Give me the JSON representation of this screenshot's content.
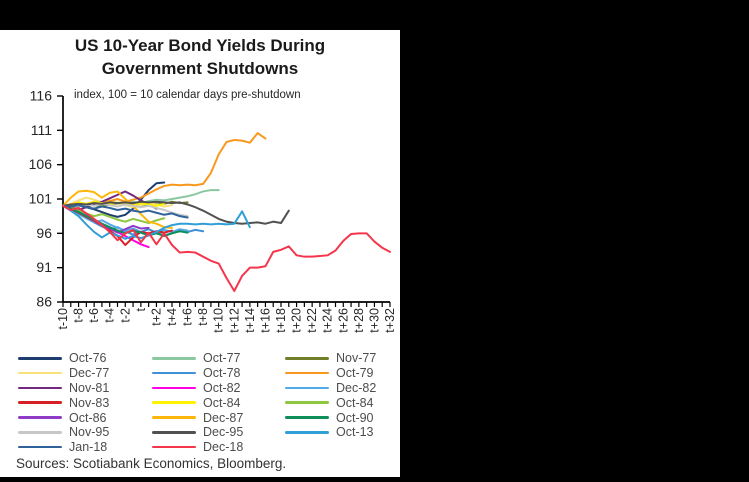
{
  "page": {
    "background_color": "#000000",
    "panel_color": "#ffffff",
    "axis_color": "#000000",
    "axis_text_color": "#262626",
    "legend_text_color": "#4d4d4d"
  },
  "chart_data": {
    "type": "line",
    "title": "US 10-Year Bond Yields During Government Shutdowns",
    "subtitle": "index, 100 = 10 calendar days pre-shutdown",
    "source_note": "Sources: Scotiabank Economics, Bloomberg.",
    "ylim": [
      86,
      116
    ],
    "yticks": [
      116,
      111,
      106,
      101,
      96,
      91,
      86
    ],
    "x_start": -10,
    "x_end": 32,
    "xtick_label_step": 2,
    "xtick_labels": [
      "t-10",
      "t-8",
      "t-6",
      "t-4",
      "t-2",
      "t",
      "t+2",
      "t+4",
      "t+6",
      "t+8",
      "t+10",
      "t+12",
      "t+14",
      "t+16",
      "t+18",
      "t+20",
      "t+22",
      "t+24",
      "t+26",
      "t+28",
      "t+30",
      "t+32"
    ],
    "grid": false,
    "legend_position": "bottom",
    "legend_columns": 3,
    "series": [
      {
        "name": "Oct-76",
        "color": "#1d3d6e",
        "values": [
          100,
          99.9,
          100.1,
          99.8,
          99.5,
          99.1,
          98.7,
          98.4,
          98.7,
          99.6,
          100.9,
          102.3,
          103.3,
          103.4
        ]
      },
      {
        "name": "Oct-77",
        "color": "#8bc8a2",
        "values": [
          100,
          100.1,
          99.9,
          100.2,
          100.3,
          100.1,
          100.4,
          100.3,
          100.4,
          100.6,
          100.4,
          100.7,
          100.9,
          100.8,
          101.0,
          101.2,
          101.4,
          101.7,
          102.1,
          102.3,
          102.3
        ]
      },
      {
        "name": "Nov-77",
        "color": "#6f7f2a",
        "values": [
          100,
          99.8,
          100.0,
          100.3,
          100.1,
          99.9,
          100.2,
          100.4,
          100.1,
          100.3,
          100.0,
          100.2,
          100.5,
          100.3,
          100.6,
          100.4,
          100.5
        ]
      },
      {
        "name": "Dec-77",
        "color": "#f8e07a",
        "values": [
          100,
          100.3,
          100.8,
          101.2,
          100.9,
          100.5,
          100.8,
          100.4,
          100.1,
          99.8,
          100.1,
          100.4,
          100.2,
          99.9,
          100.1
        ]
      },
      {
        "name": "Oct-78",
        "color": "#4191d6",
        "values": [
          100,
          99.6,
          99.0,
          98.2,
          97.6,
          97.0,
          96.5,
          96.9,
          96.3,
          95.8,
          96.2,
          96.6,
          96.1,
          95.7,
          96.0,
          96.4,
          96.2,
          96.5,
          96.3
        ]
      },
      {
        "name": "Oct-79",
        "color": "#f8991d",
        "values": [
          100,
          100.2,
          100.5,
          100.3,
          100.6,
          100.4,
          100.7,
          101.0,
          100.6,
          100.9,
          101.2,
          101.8,
          102.4,
          102.9,
          103.1,
          103.0,
          103.1,
          103.0,
          103.2,
          104.8,
          107.5,
          109.3,
          109.6,
          109.5,
          109.2,
          110.6,
          109.8
        ]
      },
      {
        "name": "Nov-81",
        "color": "#722a80",
        "values": [
          100,
          99.7,
          99.4,
          99.8,
          100.2,
          100.6,
          101.1,
          101.6,
          102.1,
          101.5,
          100.8,
          100.2,
          99.6
        ]
      },
      {
        "name": "Oct-82",
        "color": "#ff00e4",
        "values": [
          100,
          99.6,
          99.2,
          98.6,
          98.0,
          97.4,
          96.8,
          96.2,
          95.6,
          95.0,
          94.4,
          94.0
        ]
      },
      {
        "name": "Dec-82",
        "color": "#54a9e8",
        "values": [
          100,
          99.5,
          98.8,
          98.2,
          97.6,
          97.9,
          97.3,
          96.8,
          96.4,
          96.7,
          96.2,
          95.8,
          96.1,
          96.5,
          96.2,
          96.6,
          96.4
        ]
      },
      {
        "name": "Nov-83",
        "color": "#d62027",
        "values": [
          100,
          99.5,
          99.0,
          98.4,
          97.8,
          97.2,
          96.4,
          95.6,
          94.3,
          95.4,
          96.2,
          96.0,
          96.3,
          96.1,
          96.4
        ]
      },
      {
        "name": "Oct-84",
        "color": "#fef200",
        "values": [
          100,
          100.2,
          100.5,
          100.3,
          100.6,
          100.4,
          100.2,
          100.5,
          100.3,
          100.1,
          100.4,
          100.2,
          100.0,
          100.3
        ]
      },
      {
        "name": "Oct-84",
        "color": "#8dc63f",
        "values": [
          100,
          99.7,
          99.3,
          98.9,
          98.5,
          98.8,
          98.4,
          98.0,
          97.7,
          98.1,
          97.8,
          97.5,
          97.9,
          98.2
        ]
      },
      {
        "name": "Oct-86",
        "color": "#8e3cc8",
        "values": [
          100,
          99.6,
          99.1,
          98.5,
          97.9,
          97.3,
          96.7,
          96.1,
          96.6,
          97.1,
          96.7,
          96.8
        ]
      },
      {
        "name": "Dec-87",
        "color": "#ffb60a",
        "values": [
          100,
          101.2,
          102.1,
          102.2,
          102.0,
          101.2,
          101.9,
          102.1,
          101.0,
          100.0,
          98.8,
          97.7,
          97.4,
          96.9,
          96.8
        ]
      },
      {
        "name": "Oct-90",
        "color": "#0e8f5a",
        "values": [
          100,
          99.6,
          99.1,
          98.5,
          98.0,
          97.4,
          96.9,
          96.4,
          96.0,
          96.4,
          96.1,
          95.7,
          96.0,
          95.6,
          96.0,
          96.3,
          96.1
        ]
      },
      {
        "name": "Nov-95",
        "color": "#c7c7c7",
        "values": [
          100,
          100.1,
          99.9,
          100.2,
          100.0,
          100.3,
          100.1,
          99.9,
          100.2,
          100.0,
          99.8,
          100.0,
          99.7,
          99.4,
          99.0,
          98.7,
          98.5
        ]
      },
      {
        "name": "Dec-95",
        "color": "#515151",
        "values": [
          100,
          100.2,
          100.3,
          100.2,
          100.4,
          100.3,
          100.5,
          100.4,
          100.5,
          100.4,
          100.6,
          100.5,
          100.6,
          100.5,
          100.4,
          100.5,
          100.2,
          99.8,
          99.3,
          98.7,
          98.1,
          97.7,
          97.5,
          97.4,
          97.5,
          97.6,
          97.4,
          97.7,
          97.5,
          99.3
        ]
      },
      {
        "name": "Oct-13",
        "color": "#2f9fd6",
        "values": [
          100,
          99.3,
          98.5,
          97.3,
          96.2,
          95.4,
          96.1,
          95.7,
          95.2,
          95.6,
          95.3,
          95.7,
          96.2,
          96.8,
          97.2,
          97.4,
          97.4,
          97.3,
          97.4,
          97.3,
          97.4,
          97.3,
          97.4,
          99.2,
          96.9
        ]
      },
      {
        "name": "Jan-18",
        "color": "#2f6399",
        "values": [
          100,
          99.9,
          100.1,
          99.8,
          99.6,
          99.9,
          99.7,
          99.4,
          99.6,
          99.3,
          99.1,
          99.3,
          99.0,
          98.7,
          98.9,
          98.5,
          98.3
        ]
      },
      {
        "name": "Dec-18",
        "color": "#f4364c",
        "values": [
          100,
          99.4,
          99.7,
          98.9,
          98.1,
          97.2,
          96.2,
          95.0,
          96.0,
          96.5,
          94.7,
          96.1,
          94.4,
          96.0,
          94.3,
          93.2,
          93.3,
          93.2,
          92.6,
          92.0,
          91.6,
          89.5,
          87.6,
          89.8,
          91.0,
          91.0,
          91.2,
          93.3,
          93.6,
          94.1,
          92.8,
          92.6,
          92.6,
          92.7,
          92.8,
          93.5,
          94.9,
          95.9,
          96.0,
          96.0,
          94.8,
          93.9,
          93.3
        ]
      }
    ]
  }
}
